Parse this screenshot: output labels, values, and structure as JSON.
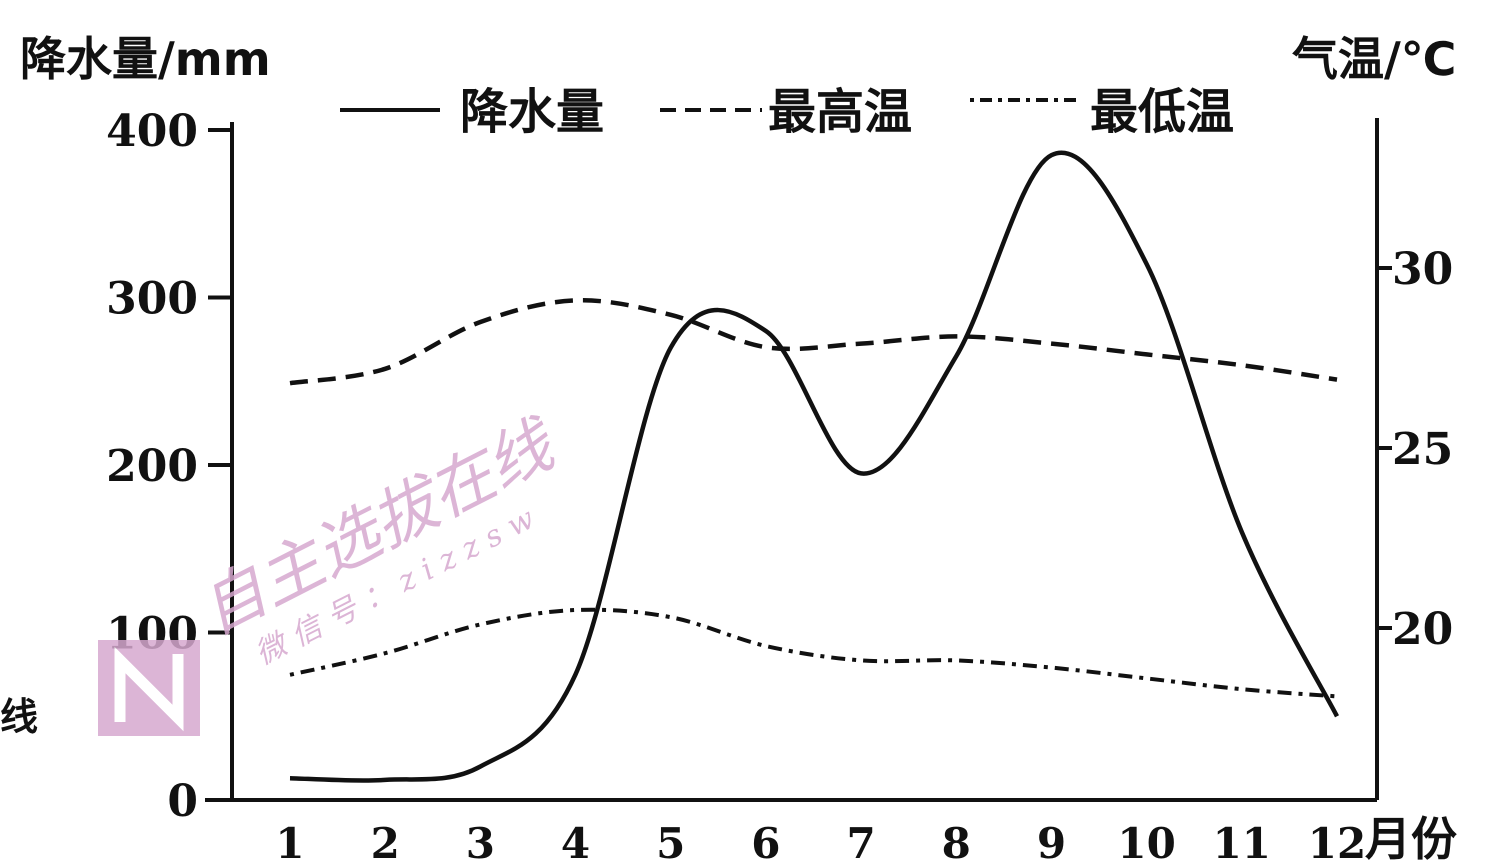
{
  "chart_data": {
    "type": "line",
    "x": [
      1,
      2,
      3,
      4,
      5,
      6,
      7,
      8,
      9,
      10,
      11,
      12
    ],
    "xlabel": "月份",
    "ylabel_left": "降水量/mm",
    "ylabel_right": "气温/℃",
    "ylim_left": [
      0,
      400
    ],
    "yticks_left": [
      "0",
      "100",
      "200",
      "300",
      "400"
    ],
    "ylim_right": [
      15,
      33
    ],
    "yticks_right": [
      "20",
      "25",
      "30"
    ],
    "grid": false,
    "legend_position": "top",
    "series": [
      {
        "name": "降水量",
        "axis": "left",
        "style": "solid",
        "values": [
          13,
          12,
          20,
          75,
          270,
          280,
          195,
          265,
          385,
          320,
          160,
          50
        ]
      },
      {
        "name": "最高温",
        "axis": "right",
        "style": "dashed",
        "values": [
          26.8,
          27.2,
          28.5,
          29.1,
          28.7,
          27.8,
          27.9,
          28.1,
          27.9,
          27.6,
          27.3,
          26.9
        ]
      },
      {
        "name": "最低温",
        "axis": "right",
        "style": "dashdot",
        "values": [
          18.7,
          19.3,
          20.1,
          20.5,
          20.3,
          19.5,
          19.1,
          19.1,
          18.9,
          18.6,
          18.3,
          18.1
        ]
      }
    ]
  },
  "watermark": {
    "main": "自主选拔在线",
    "sub": "微信号：zizzsw",
    "side": "线"
  }
}
